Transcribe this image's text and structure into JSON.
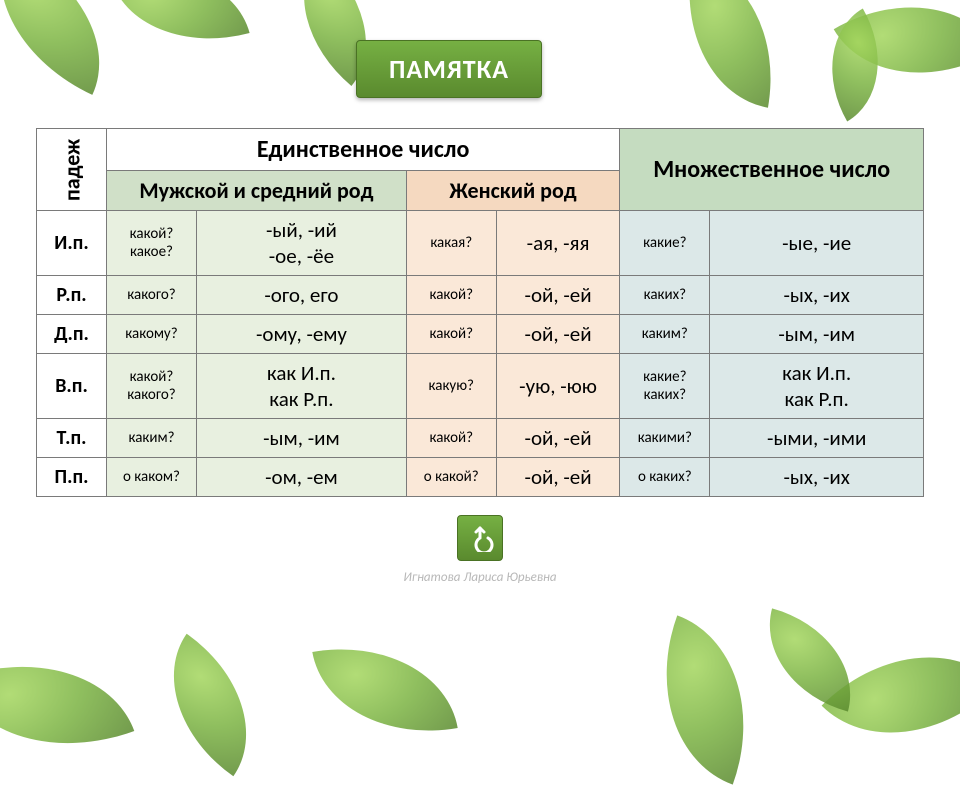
{
  "title": "ПАМЯТКА",
  "headers": {
    "case": "падеж",
    "singular": "Единственное число",
    "plural": "Множественное\nчисло",
    "masc_neut": "Мужской и средний род",
    "fem": "Женский род"
  },
  "colors": {
    "badge_bg_top": "#76b043",
    "badge_bg_bottom": "#5a8a2e",
    "badge_text": "#ffffff",
    "masc_header_bg": "#d0e0c8",
    "fem_header_bg": "#f5d9c0",
    "plur_header_bg": "#c5dcc0",
    "masc_col_bg": "#e8f0e0",
    "fem_col_bg": "#fae8d8",
    "plur_col_bg": "#dce8e8",
    "border": "#7a7a7a",
    "author_text": "#b8b8b8"
  },
  "rows": [
    {
      "case": "И.п.",
      "masc_q": "какой?\nкакое?",
      "masc_e": "-ый, -ий\n-ое, -ёе",
      "fem_q": "какая?",
      "fem_e": "-ая, -яя",
      "plur_q": "какие?",
      "plur_e": "-ые, -ие"
    },
    {
      "case": "Р.п.",
      "masc_q": "какого?",
      "masc_e": "-ого, его",
      "fem_q": "какой?",
      "fem_e": "-ой, -ей",
      "plur_q": "каких?",
      "plur_e": "-ых, -их"
    },
    {
      "case": "Д.п.",
      "masc_q": "какому?",
      "masc_e": "-ому, -ему",
      "fem_q": "какой?",
      "fem_e": "-ой, -ей",
      "plur_q": "каким?",
      "plur_e": "-ым, -им"
    },
    {
      "case": "В.п.",
      "masc_q": "какой?\nкакого?",
      "masc_e": "как И.п.\nкак Р.п.",
      "fem_q": "какую?",
      "fem_e": "-ую, -юю",
      "plur_q": "какие?\nкаких?",
      "plur_e": "как И.п.\nкак Р.п."
    },
    {
      "case": "Т.п.",
      "masc_q": "каким?",
      "masc_e": "-ым, -им",
      "fem_q": "какой?",
      "fem_e": "-ой, -ей",
      "plur_q": "какими?",
      "plur_e": "-ыми, -ими"
    },
    {
      "case": "П.п.",
      "masc_q": "о каком?",
      "masc_e": "-ом, -ем",
      "fem_q": "о какой?",
      "fem_e": "-ой, -ей",
      "plur_q": "о каких?",
      "plur_e": "-ых, -их"
    }
  ],
  "author": "Игнатова Лариса Юрьевна",
  "table": {
    "font_family": "Calibri, Arial, sans-serif",
    "header_fontsize": 24,
    "subheader_fontsize": 22,
    "case_fontsize": 20,
    "question_fontsize": 15,
    "ending_fontsize": 21
  }
}
